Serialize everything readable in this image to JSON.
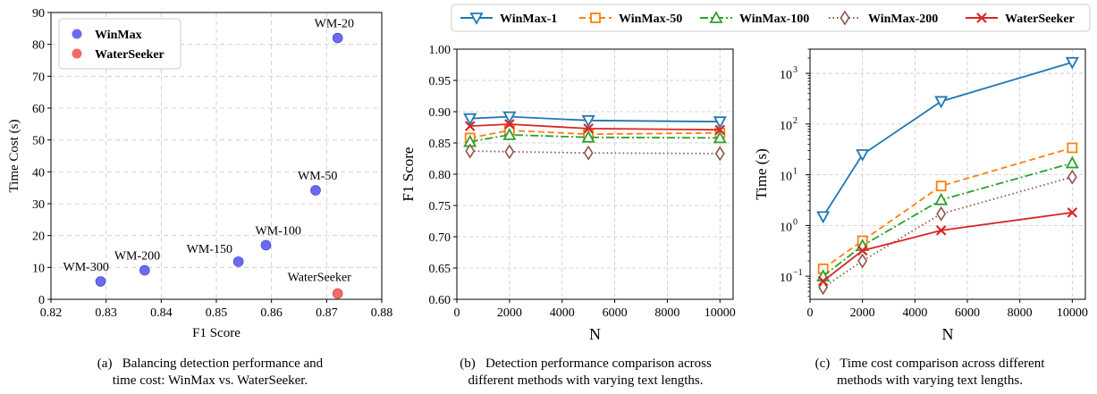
{
  "colors": {
    "winmax": "#5B5BF0",
    "waterseeker": "#F05A5A",
    "wm1": "#1f77b4",
    "wm50": "#ff7f0e",
    "wm100": "#2ca02c",
    "wm200": "#8c564b",
    "ws": "#d62728"
  },
  "legend_top": {
    "entries": [
      "WinMax-1",
      "WinMax-50",
      "WinMax-100",
      "WinMax-200",
      "WaterSeeker"
    ]
  },
  "captions": [
    {
      "label": "(a)",
      "line1": "Balancing detection performance and",
      "line2": "time cost: WinMax vs. WaterSeeker."
    },
    {
      "label": "(b)",
      "line1": "Detection performance comparison across",
      "line2": "different methods with varying text lengths."
    },
    {
      "label": "(c)",
      "line1": "Time cost comparison across different",
      "line2": "methods with varying text lengths."
    }
  ],
  "chart_data": [
    {
      "type": "scatter",
      "xlabel": "F1 Score",
      "ylabel": "Time Cost (s)",
      "xlim": [
        0.82,
        0.88
      ],
      "ylim": [
        0,
        90
      ],
      "xticks": [
        "0.82",
        "0.83",
        "0.84",
        "0.85",
        "0.86",
        "0.87",
        "0.88"
      ],
      "yticks": [
        "0",
        "10",
        "20",
        "30",
        "40",
        "50",
        "60",
        "70",
        "80",
        "90"
      ],
      "grid": true,
      "legend": "top-left",
      "series": [
        {
          "name": "WinMax",
          "points": [
            {
              "label": "WM-20",
              "x": 0.872,
              "y": 82
            },
            {
              "label": "WM-50",
              "x": 0.868,
              "y": 34.2
            },
            {
              "label": "WM-100",
              "x": 0.859,
              "y": 17
            },
            {
              "label": "WM-150",
              "x": 0.854,
              "y": 11.8
            },
            {
              "label": "WM-200",
              "x": 0.837,
              "y": 9.1
            },
            {
              "label": "WM-300",
              "x": 0.829,
              "y": 5.6
            }
          ]
        },
        {
          "name": "WaterSeeker",
          "points": [
            {
              "label": "WaterSeeker",
              "x": 0.872,
              "y": 1.8
            }
          ]
        }
      ]
    },
    {
      "type": "line",
      "xlabel": "N",
      "ylabel": "F1 Score",
      "xlim": [
        0,
        10500
      ],
      "ylim": [
        0.6,
        1.0
      ],
      "xticks": [
        "0",
        "2000",
        "4000",
        "6000",
        "8000",
        "10000"
      ],
      "yticks": [
        "0.60",
        "0.65",
        "0.70",
        "0.75",
        "0.80",
        "0.85",
        "0.90",
        "0.95",
        "1.00"
      ],
      "grid": true,
      "x": [
        500,
        2000,
        5000,
        10000
      ],
      "series": [
        {
          "name": "WinMax-1",
          "values": [
            0.889,
            0.892,
            0.886,
            0.884
          ]
        },
        {
          "name": "WinMax-50",
          "values": [
            0.858,
            0.87,
            0.864,
            0.866
          ]
        },
        {
          "name": "WinMax-100",
          "values": [
            0.852,
            0.863,
            0.859,
            0.858
          ]
        },
        {
          "name": "WinMax-200",
          "values": [
            0.837,
            0.836,
            0.834,
            0.833
          ]
        },
        {
          "name": "WaterSeeker",
          "values": [
            0.877,
            0.88,
            0.873,
            0.871
          ]
        }
      ]
    },
    {
      "type": "line",
      "xlabel": "N",
      "ylabel": "Time (s)",
      "scale": "log",
      "xlim": [
        0,
        10500
      ],
      "ylim": [
        0.035,
        3000
      ],
      "xticks": [
        "0",
        "2000",
        "4000",
        "6000",
        "8000",
        "10000"
      ],
      "yticks": [
        {
          "value": 0.1,
          "base": "10",
          "exp": "−1"
        },
        {
          "value": 1,
          "base": "10",
          "exp": "0"
        },
        {
          "value": 10,
          "base": "10",
          "exp": "1"
        },
        {
          "value": 100,
          "base": "10",
          "exp": "2"
        },
        {
          "value": 1000,
          "base": "10",
          "exp": "3"
        }
      ],
      "grid": true,
      "x": [
        500,
        2000,
        5000,
        10000
      ],
      "series": [
        {
          "name": "WinMax-1",
          "values": [
            1.5,
            25,
            280,
            1650
          ]
        },
        {
          "name": "WinMax-50",
          "values": [
            0.14,
            0.5,
            6,
            34
          ]
        },
        {
          "name": "WinMax-100",
          "values": [
            0.1,
            0.4,
            3.2,
            17
          ]
        },
        {
          "name": "WinMax-200",
          "values": [
            0.06,
            0.2,
            1.7,
            9
          ]
        },
        {
          "name": "WaterSeeker",
          "values": [
            0.08,
            0.32,
            0.8,
            1.8
          ]
        }
      ]
    }
  ]
}
